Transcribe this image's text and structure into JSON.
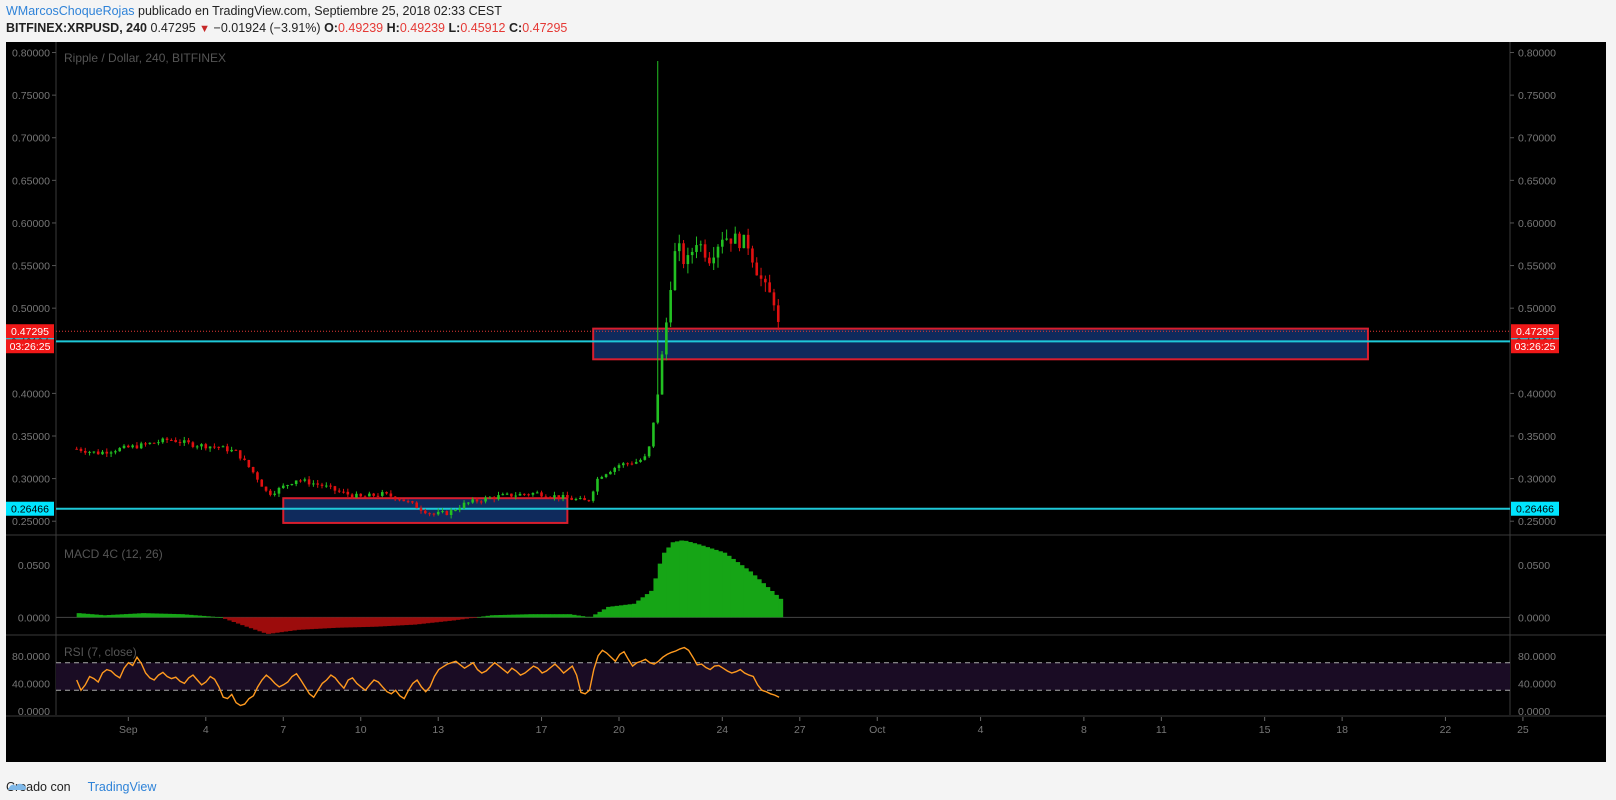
{
  "header": {
    "author": "WMarcosChoqueRojas",
    "published": "publicado en TradingView.com, Septiembre 25, 2018 02:33 CEST",
    "symbol": "BITFINEX:XRPUSD, 240",
    "price": "0.47295",
    "change": "−0.01924 (−3.91%)",
    "o_label": "O:",
    "o_value": "0.49239",
    "h_label": "H:",
    "h_value": "0.49239",
    "l_label": "L:",
    "l_value": "0.45912",
    "c_label": "C:",
    "c_value": "0.47295"
  },
  "footer": {
    "created_with": "Creado con",
    "brand": "TradingView"
  },
  "colors": {
    "background": "#000000",
    "up": "#22c022",
    "down": "#e01010",
    "level_line": "#1ec8d8",
    "box_border": "#d81e2e",
    "box_fill": "#0f2a5c",
    "rsi_line": "#ff9a1f",
    "rsi_band": "#1a0c24",
    "macd_up": "#16a516",
    "macd_down": "#9c0c0c"
  },
  "chart_data": {
    "type": "candlestick",
    "title": "Ripple / Dollar, 240, BITFINEX",
    "x_ticks": [
      "Sep",
      "4",
      "7",
      "10",
      "13",
      "17",
      "20",
      "24",
      "27",
      "Oct",
      "4",
      "8",
      "11",
      "15",
      "18",
      "22",
      "25"
    ],
    "price_ticks": [
      "0.80000",
      "0.75000",
      "0.70000",
      "0.65000",
      "0.60000",
      "0.55000",
      "0.50000",
      "0.40000",
      "0.35000",
      "0.30000",
      "0.25000"
    ],
    "ylim": [
      0.235,
      0.81
    ],
    "last_price_label": "0.47295",
    "countdown_label": "03:26:25",
    "levels": [
      {
        "value": 0.46104,
        "label": "0.46104"
      },
      {
        "value": 0.26466,
        "label": "0.26466"
      }
    ],
    "last_price": 0.47295,
    "zones": [
      {
        "from_day": 8,
        "to_day": 19,
        "low": 0.248,
        "high": 0.277
      },
      {
        "from_day": 20,
        "to_day": 50,
        "low": 0.44,
        "high": 0.476
      }
    ],
    "first_day": 30,
    "close_anchors": [
      [
        30,
        0.335
      ],
      [
        30.8,
        0.33
      ],
      [
        31.5,
        0.334
      ],
      [
        32.5,
        0.339
      ],
      [
        33.6,
        0.346
      ],
      [
        34.5,
        0.34
      ],
      [
        35.5,
        0.337
      ],
      [
        36.2,
        0.331
      ],
      [
        36.9,
        0.305
      ],
      [
        37.4,
        0.282
      ],
      [
        37.8,
        0.287
      ],
      [
        38.5,
        0.299
      ],
      [
        39.5,
        0.292
      ],
      [
        40.2,
        0.284
      ],
      [
        41,
        0.278
      ],
      [
        41.8,
        0.282
      ],
      [
        42.5,
        0.277
      ],
      [
        43.3,
        0.265
      ],
      [
        43.8,
        0.258
      ],
      [
        44.4,
        0.26
      ],
      [
        45,
        0.27
      ],
      [
        45.6,
        0.275
      ],
      [
        46.3,
        0.279
      ],
      [
        47,
        0.281
      ],
      [
        47.8,
        0.283
      ],
      [
        48.6,
        0.279
      ],
      [
        49.4,
        0.275
      ],
      [
        49.8,
        0.273
      ],
      [
        50.2,
        0.302
      ],
      [
        51,
        0.316
      ],
      [
        51.7,
        0.32
      ],
      [
        52.1,
        0.326
      ],
      [
        52.3,
        0.357
      ],
      [
        52.5,
        0.4
      ],
      [
        52.7,
        0.45
      ],
      [
        52.9,
        0.5
      ],
      [
        53.1,
        0.56
      ],
      [
        53.3,
        0.57
      ],
      [
        53.6,
        0.55
      ],
      [
        54,
        0.58
      ],
      [
        54.5,
        0.56
      ],
      [
        55,
        0.585
      ],
      [
        55.6,
        0.58
      ],
      [
        56,
        0.575
      ],
      [
        56.4,
        0.54
      ],
      [
        56.7,
        0.52
      ],
      [
        57,
        0.51
      ],
      [
        57.2,
        0.473
      ]
    ],
    "spike": {
      "day": 52.45,
      "high": 0.79
    },
    "series_end_day": 57.2,
    "macd": {
      "name": "MACD 4C (12, 26)",
      "ticks": [
        "0.0500",
        "0.0000"
      ],
      "ylim": [
        -0.016,
        0.078
      ],
      "anchors": [
        [
          30,
          0.004
        ],
        [
          31,
          0.002
        ],
        [
          32.5,
          0.004
        ],
        [
          34,
          0.003
        ],
        [
          35.5,
          0.0
        ],
        [
          36.5,
          -0.009
        ],
        [
          37.3,
          -0.016
        ],
        [
          38.5,
          -0.012
        ],
        [
          40,
          -0.01
        ],
        [
          41.5,
          -0.009
        ],
        [
          43,
          -0.007
        ],
        [
          44.5,
          -0.003
        ],
        [
          46,
          0.002
        ],
        [
          47.5,
          0.003
        ],
        [
          49,
          0.003
        ],
        [
          49.8,
          0.0
        ],
        [
          50.5,
          0.01
        ],
        [
          51.5,
          0.013
        ],
        [
          52.2,
          0.026
        ],
        [
          52.6,
          0.06
        ],
        [
          53,
          0.072
        ],
        [
          53.4,
          0.074
        ],
        [
          54,
          0.07
        ],
        [
          55,
          0.062
        ],
        [
          56,
          0.044
        ],
        [
          57.2,
          0.017
        ]
      ]
    },
    "rsi": {
      "name": "RSI (7, close)",
      "ticks": [
        "80.0000",
        "40.0000",
        "0.0000"
      ],
      "ylim": [
        0,
        100
      ],
      "band": [
        30,
        70
      ],
      "values": [
        45,
        30,
        38,
        50,
        47,
        42,
        55,
        60,
        58,
        52,
        48,
        62,
        70,
        66,
        78,
        69,
        55,
        48,
        45,
        52,
        56,
        50,
        47,
        49,
        43,
        40,
        48,
        52,
        45,
        38,
        42,
        50,
        46,
        35,
        20,
        18,
        24,
        12,
        8,
        10,
        18,
        22,
        35,
        45,
        52,
        47,
        40,
        35,
        38,
        42,
        50,
        54,
        45,
        35,
        25,
        20,
        30,
        40,
        45,
        52,
        48,
        40,
        33,
        45,
        48,
        40,
        35,
        30,
        38,
        45,
        42,
        35,
        28,
        25,
        30,
        22,
        18,
        30,
        40,
        45,
        35,
        28,
        35,
        50,
        60,
        64,
        68,
        70,
        72,
        67,
        62,
        66,
        70,
        60,
        55,
        58,
        64,
        70,
        65,
        60,
        55,
        62,
        58,
        52,
        55,
        60,
        65,
        62,
        55,
        58,
        63,
        68,
        62,
        55,
        60,
        65,
        52,
        27,
        25,
        30,
        60,
        80,
        88,
        84,
        78,
        72,
        82,
        86,
        75,
        65,
        70,
        72,
        75,
        70,
        68,
        72,
        78,
        82,
        85,
        87,
        90,
        92,
        88,
        78,
        67,
        68,
        63,
        60,
        65,
        66,
        62,
        58,
        55,
        57,
        60,
        55,
        52,
        50,
        38,
        30,
        28,
        25,
        23,
        20
      ]
    }
  }
}
